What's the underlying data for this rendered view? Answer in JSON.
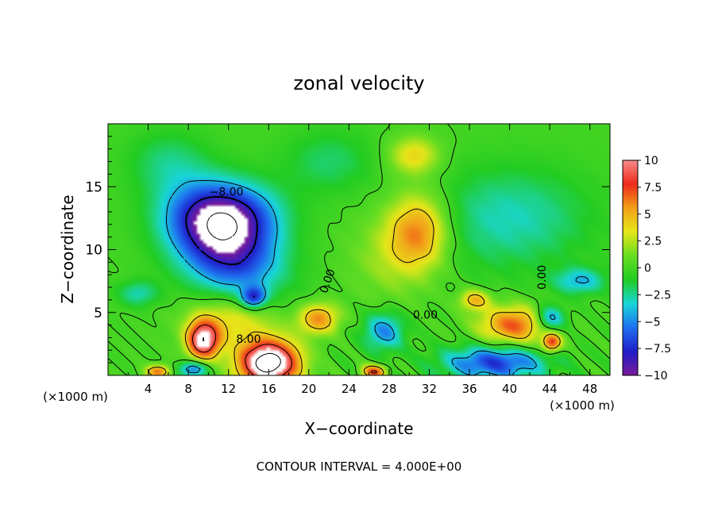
{
  "chart_data": {
    "type": "heatmap",
    "title": "zonal velocity",
    "xlabel": "X−coordinate",
    "ylabel": "Z−coordinate",
    "x_unit": "(×1000 m)",
    "footer": "CONTOUR INTERVAL = 4.000E+00",
    "xlim": [
      0,
      50
    ],
    "ylim": [
      0,
      20
    ],
    "x_ticks": [
      4,
      8,
      12,
      16,
      20,
      24,
      28,
      32,
      36,
      40,
      44,
      48
    ],
    "y_ticks": [
      5,
      10,
      15
    ],
    "colorbar": {
      "ticks": [
        10,
        7.5,
        5,
        2.5,
        0,
        -2.5,
        -5,
        -7.5,
        -10
      ],
      "tick_labels": [
        "10",
        "7.5",
        "5",
        "2.5",
        "0",
        "−2.5",
        "−5",
        "−7.5",
        "−10"
      ],
      "range": [
        -10,
        10
      ],
      "colors": [
        "#7a1a9a",
        "#1e1ec8",
        "#1f6ff0",
        "#19d6d8",
        "#22cc22",
        "#66dd22",
        "#e6e619",
        "#f2a019",
        "#ee2a1a",
        "#f58a8a"
      ]
    },
    "contour_interval": 4.0,
    "contour_labels": [
      "−8.00",
      "0.00",
      "0.00",
      "0.00",
      "8.00"
    ],
    "features": [
      {
        "x": 11.5,
        "z": 10.5,
        "sx": 5.5,
        "sz": 3.6,
        "a": -9,
        "rot": 25
      },
      {
        "x": 12.0,
        "z": 12.8,
        "sx": 5.0,
        "sz": 2.5,
        "a": -6
      },
      {
        "x": 14.5,
        "z": 6.2,
        "sx": 1.2,
        "sz": 0.8,
        "a": -7
      },
      {
        "x": 22.0,
        "z": 17.0,
        "sx": 4.5,
        "sz": 2.5,
        "a": -2
      },
      {
        "x": 6.0,
        "z": 17.0,
        "sx": 4.0,
        "sz": 2.5,
        "a": -2
      },
      {
        "x": 16.0,
        "z": 1.0,
        "sx": 3.0,
        "sz": 1.8,
        "a": 14
      },
      {
        "x": 9.5,
        "z": 2.8,
        "sx": 1.6,
        "sz": 1.5,
        "a": 11
      },
      {
        "x": 12.5,
        "z": 4.5,
        "sx": 4.5,
        "sz": 2.0,
        "a": 4
      },
      {
        "x": 21.0,
        "z": 4.5,
        "sx": 2.0,
        "sz": 1.2,
        "a": 6
      },
      {
        "x": 31.0,
        "z": 11.5,
        "sx": 3.0,
        "sz": 3.0,
        "a": 6
      },
      {
        "x": 30.5,
        "z": 17.5,
        "sx": 2.5,
        "sz": 1.5,
        "a": 4
      },
      {
        "x": 28.0,
        "z": 9.5,
        "sx": 4.0,
        "sz": 3.5,
        "a": 2
      },
      {
        "x": 40.5,
        "z": 4.0,
        "sx": 3.5,
        "sz": 1.5,
        "a": 7
      },
      {
        "x": 36.5,
        "z": 6.0,
        "sx": 1.5,
        "sz": 0.8,
        "a": 5
      },
      {
        "x": 27.5,
        "z": 3.5,
        "sx": 2.0,
        "sz": 1.5,
        "a": -5
      },
      {
        "x": 38.5,
        "z": 1.0,
        "sx": 5.0,
        "sz": 1.3,
        "a": -7
      },
      {
        "x": 44.0,
        "z": 4.5,
        "sx": 1.5,
        "sz": 1.0,
        "a": -6
      },
      {
        "x": 47.0,
        "z": 7.5,
        "sx": 2.5,
        "sz": 1.0,
        "a": -4
      },
      {
        "x": 44.2,
        "z": 2.6,
        "sx": 0.9,
        "sz": 0.7,
        "a": 8
      },
      {
        "x": 40.0,
        "z": 12.5,
        "sx": 8.0,
        "sz": 4.0,
        "a": -3
      },
      {
        "x": 3.0,
        "z": 6.5,
        "sx": 2.0,
        "sz": 1.0,
        "a": -3
      },
      {
        "x": 26.5,
        "z": 0.3,
        "sx": 1.2,
        "sz": 0.5,
        "a": 8
      },
      {
        "x": 5.0,
        "z": 0.3,
        "sx": 1.2,
        "sz": 0.5,
        "a": 7
      },
      {
        "x": 8.5,
        "z": 0.5,
        "sx": 1.5,
        "sz": 0.6,
        "a": -6
      }
    ]
  }
}
